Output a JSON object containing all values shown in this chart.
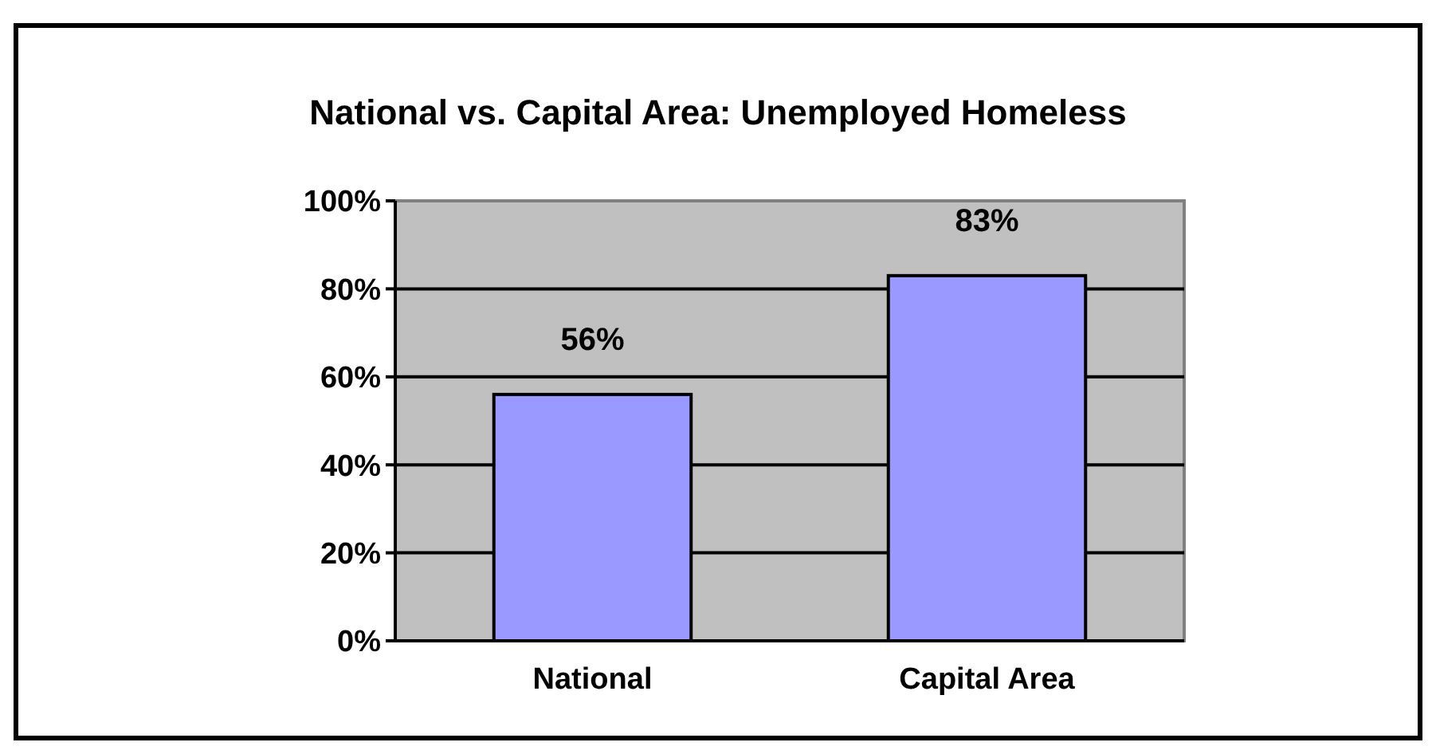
{
  "chart_data": {
    "type": "bar",
    "title": "National vs. Capital Area: Unemployed Homeless",
    "categories": [
      "National",
      "Capital Area"
    ],
    "values": [
      56,
      83
    ],
    "color": "#9999ff",
    "ylim": [
      0,
      100
    ],
    "yticks": [
      {
        "value": 0,
        "label": "0%"
      },
      {
        "value": 20,
        "label": "20%"
      },
      {
        "value": 40,
        "label": "40%"
      },
      {
        "value": 60,
        "label": "60%"
      },
      {
        "value": 80,
        "label": "80%"
      },
      {
        "value": 100,
        "label": "100%"
      }
    ],
    "grid": "y",
    "value_labels": [
      "56%",
      "83%"
    ]
  }
}
